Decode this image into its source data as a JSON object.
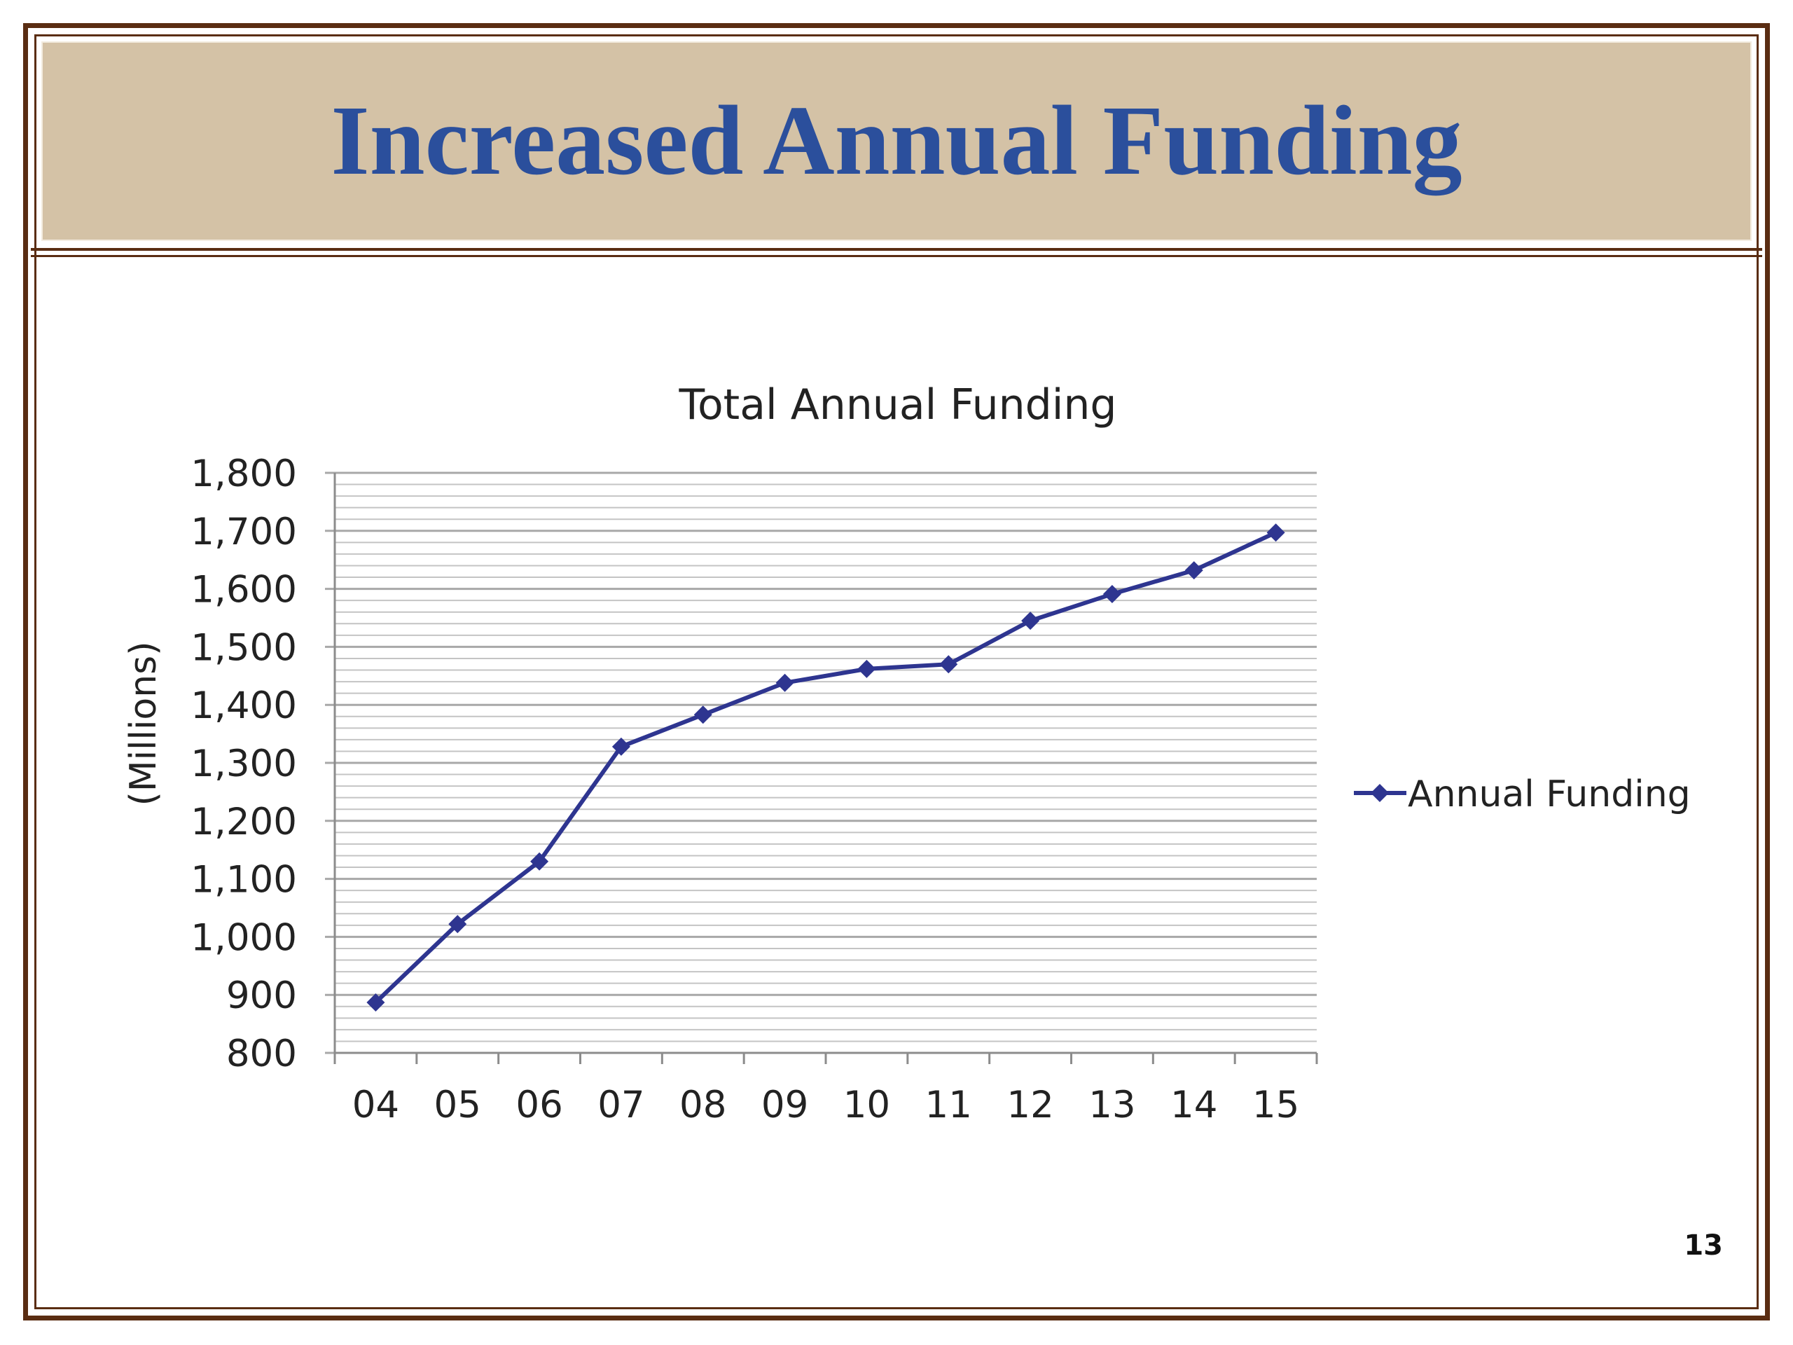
{
  "slide": {
    "title": "Increased Annual Funding",
    "page_number": "13"
  },
  "chart_data": {
    "type": "line",
    "title": "Total Annual Funding",
    "xlabel": "",
    "ylabel": "(Millions)",
    "categories": [
      "04",
      "05",
      "06",
      "07",
      "08",
      "09",
      "10",
      "11",
      "12",
      "13",
      "14",
      "15"
    ],
    "series": [
      {
        "name": "Annual Funding",
        "values": [
          887,
          1022,
          1130,
          1328,
          1383,
          1438,
          1462,
          1470,
          1545,
          1591,
          1632,
          1697
        ],
        "color": "#2e3590",
        "marker": "diamond"
      }
    ],
    "ylim": [
      800,
      1800
    ],
    "ytick_values": [
      800,
      900,
      1000,
      1100,
      1200,
      1300,
      1400,
      1500,
      1600,
      1700,
      1800
    ],
    "ytick_labels": [
      "800",
      "900",
      "1,000",
      "1,100",
      "1,200",
      "1,300",
      "1,400",
      "1,500",
      "1,600",
      "1,700",
      "1,800"
    ],
    "minor_gridlines_per_major": 5,
    "grid": true,
    "legend": "right"
  },
  "colors": {
    "title": "#2b4f9c",
    "band": "#d4c2a6",
    "frame": "#5a2d12",
    "grid": "#a8a8a8"
  }
}
